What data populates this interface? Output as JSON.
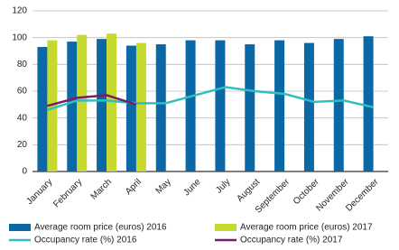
{
  "chart_data": {
    "type": "combo",
    "categories": [
      "January",
      "February",
      "March",
      "April",
      "May",
      "June",
      "July",
      "August",
      "September",
      "October",
      "November",
      "December"
    ],
    "series": [
      {
        "name": "Average room price (euros) 2016",
        "type": "bar",
        "color": "#0b68a6",
        "values": [
          93,
          97,
          99,
          94,
          95,
          98,
          98,
          95,
          98,
          96,
          99,
          101
        ]
      },
      {
        "name": "Average room price (euros) 2017",
        "type": "bar",
        "color": "#c5d92e",
        "values": [
          98,
          102,
          103,
          96,
          null,
          null,
          null,
          null,
          null,
          null,
          null,
          null
        ]
      },
      {
        "name": "Occupancy rate (%) 2016",
        "type": "line",
        "color": "#2fbfbf",
        "values": [
          46,
          53,
          53,
          51,
          51,
          57,
          63,
          60,
          58,
          52,
          53,
          48
        ]
      },
      {
        "name": "Occupancy rate (%) 2017",
        "type": "line",
        "color": "#7a1c6c",
        "values": [
          49,
          55,
          57,
          50,
          null,
          null,
          null,
          null,
          null,
          null,
          null,
          null
        ]
      }
    ],
    "ylim": [
      0,
      120
    ],
    "yticks": [
      0,
      20,
      40,
      60,
      80,
      100,
      120
    ],
    "grid": true
  }
}
